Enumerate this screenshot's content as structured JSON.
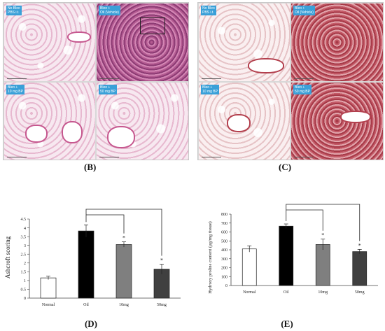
{
  "histology": {
    "B": {
      "label": "(B)",
      "tiles": [
        {
          "tag_line1": "No Bleo",
          "tag_line2": "PBS i.t."
        },
        {
          "tag_line1": "Bleo +",
          "tag_line2": "Oil (Vehicle)"
        },
        {
          "tag_line1": "Bleo +",
          "tag_line2": "10 mg BP"
        },
        {
          "tag_line1": "Bleo +",
          "tag_line2": "50 mg BP"
        }
      ]
    },
    "C": {
      "label": "(C)",
      "tiles": [
        {
          "tag_line1": "No Bleo",
          "tag_line2": "PBS i.t."
        },
        {
          "tag_line1": "Bleo +",
          "tag_line2": "Oil (Vehicle)"
        },
        {
          "tag_line1": "Bleo +",
          "tag_line2": "10 mg BP"
        },
        {
          "tag_line1": "Bleo +",
          "tag_line2": "50 mg BP"
        }
      ]
    }
  },
  "chart_data": [
    {
      "panel": "(D)",
      "type": "bar",
      "categories": [
        "Normal",
        "Oil",
        "10mg",
        "50mg"
      ],
      "values": [
        1.15,
        3.82,
        3.05,
        1.65
      ],
      "errors": [
        0.1,
        0.35,
        0.15,
        0.28
      ],
      "bar_colors": [
        "#ffffff",
        "#000000",
        "#7f7f7f",
        "#404040"
      ],
      "significance": [
        "",
        "",
        "*",
        "*"
      ],
      "ylabel": "Ashcroft scoring",
      "ylim": [
        0,
        4.5
      ],
      "yticks": [
        "0",
        "0.5",
        "1",
        "1.5",
        "2",
        "2.5",
        "3",
        "3.5",
        "4",
        "4.5"
      ],
      "ytick_values": [
        0,
        0.5,
        1,
        1.5,
        2,
        2.5,
        3,
        3.5,
        4,
        4.5
      ],
      "grid": false
    },
    {
      "panel": "(E)",
      "type": "bar",
      "categories": [
        "Normal",
        "Oil",
        "10mg",
        "50mg"
      ],
      "values": [
        410,
        665,
        460,
        380
      ],
      "errors": [
        35,
        25,
        60,
        25
      ],
      "bar_colors": [
        "#ffffff",
        "#000000",
        "#7f7f7f",
        "#404040"
      ],
      "significance": [
        "",
        "",
        "*",
        "*"
      ],
      "ylabel": "Hydroxy proline content (µg/mg tissue)",
      "ylim": [
        0,
        800
      ],
      "yticks": [
        "0",
        "100",
        "200",
        "300",
        "400",
        "500",
        "600",
        "700",
        "800"
      ],
      "ytick_values": [
        0,
        100,
        200,
        300,
        400,
        500,
        600,
        700,
        800
      ],
      "grid": false
    }
  ]
}
